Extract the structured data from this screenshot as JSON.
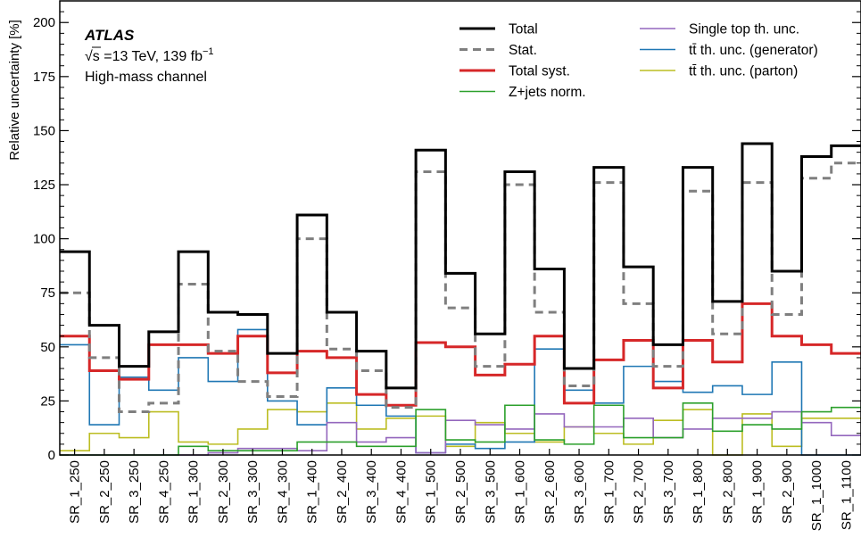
{
  "chart_data": {
    "type": "step",
    "ylabel": "Relative uncertainty [%]",
    "ylim": [
      0,
      210
    ],
    "yticks": [
      "0",
      "25",
      "50",
      "75",
      "100",
      "125",
      "150",
      "175",
      "200"
    ],
    "yticks_values": [
      0,
      25,
      50,
      75,
      100,
      125,
      150,
      175,
      200
    ],
    "categories": [
      "SR_1_250",
      "SR_2_250",
      "SR_3_250",
      "SR_4_250",
      "SR_1_300",
      "SR_2_300",
      "SR_3_300",
      "SR_4_300",
      "SR_1_400",
      "SR_2_400",
      "SR_3_400",
      "SR_4_400",
      "SR_1_500",
      "SR_2_500",
      "SR_3_500",
      "SR_1_600",
      "SR_2_600",
      "SR_3_600",
      "SR_1_700",
      "SR_2_700",
      "SR_3_700",
      "SR_1_800",
      "SR_2_800",
      "SR_1_900",
      "SR_2_900",
      "SR_1_1000",
      "SR_1_1100"
    ],
    "annotation": {
      "experiment": "ATLAS",
      "energy_prefix": "√s",
      "energy_text": " =13 TeV, 139 fb",
      "energy_sup": "−1",
      "channel": "High-mass channel"
    },
    "series": [
      {
        "name": "Total",
        "color": "#000000",
        "width": 3,
        "dash": "",
        "values": [
          94,
          60,
          41,
          57,
          94,
          66,
          65,
          47,
          111,
          66,
          48,
          31,
          141,
          84,
          56,
          131,
          86,
          40,
          133,
          87,
          51,
          133,
          71,
          144,
          85,
          138,
          143
        ]
      },
      {
        "name": "Stat.",
        "color": "#7f7f7f",
        "width": 3,
        "dash": "9,6",
        "values": [
          75,
          45,
          20,
          24,
          79,
          48,
          34,
          27,
          100,
          49,
          39,
          22,
          131,
          68,
          41,
          125,
          66,
          32,
          126,
          70,
          41,
          122,
          56,
          126,
          65,
          128,
          135
        ]
      },
      {
        "name": "Total syst.",
        "color": "#d62728",
        "width": 3,
        "dash": "",
        "values": [
          55,
          39,
          35,
          51,
          51,
          47,
          55,
          38,
          48,
          45,
          28,
          23,
          52,
          50,
          37,
          42,
          55,
          24,
          44,
          53,
          31,
          53,
          43,
          70,
          55,
          51,
          47
        ]
      },
      {
        "name": "Z+jets norm.",
        "color": "#2ca02c",
        "width": 1.6,
        "dash": "",
        "values": [
          0,
          0,
          0,
          0,
          4,
          2,
          2,
          2,
          6,
          6,
          4,
          4,
          21,
          7,
          6,
          23,
          7,
          5,
          23,
          8,
          8,
          24,
          11,
          14,
          12,
          20,
          22
        ]
      },
      {
        "name": "Single top th. unc.",
        "color": "#9467bd",
        "width": 1.6,
        "dash": "",
        "values": [
          0,
          0,
          0,
          0,
          0,
          1,
          3,
          3,
          2,
          15,
          6,
          8,
          1,
          16,
          14,
          12,
          19,
          13,
          13,
          17,
          8,
          12,
          17,
          17,
          20,
          15,
          9
        ]
      },
      {
        "name": "tt̄ th. unc. (generator)",
        "color": "#1f77b4",
        "width": 1.6,
        "dash": "",
        "values": [
          51,
          14,
          36,
          30,
          45,
          34,
          58,
          25,
          14,
          31,
          23,
          18,
          1,
          5,
          3,
          6,
          49,
          30,
          24,
          41,
          34,
          29,
          32,
          28,
          43,
          0,
          0
        ]
      },
      {
        "name": "tt̄ th. unc. (parton)",
        "color": "#bcbd22",
        "width": 1.6,
        "dash": "",
        "values": [
          2,
          10,
          8,
          20,
          6,
          5,
          12,
          21,
          20,
          24,
          12,
          17,
          18,
          4,
          15,
          10,
          6,
          13,
          10,
          5,
          16,
          21,
          0,
          19,
          4,
          17,
          17
        ]
      }
    ],
    "legend_col1": [
      {
        "label": "Total",
        "color": "#000000",
        "width": 3,
        "dash": ""
      },
      {
        "label": "Stat.",
        "color": "#7f7f7f",
        "width": 3,
        "dash": "9,6"
      },
      {
        "label": "Total syst.",
        "color": "#d62728",
        "width": 3,
        "dash": ""
      },
      {
        "label": "Z+jets norm.",
        "color": "#2ca02c",
        "width": 1.6,
        "dash": ""
      }
    ],
    "legend_col2": [
      {
        "label": "Single top th. unc.",
        "color": "#9467bd",
        "width": 1.6,
        "dash": ""
      },
      {
        "label": "tt̄ th. unc. (generator)",
        "color": "#1f77b4",
        "width": 1.6,
        "dash": ""
      },
      {
        "label": "tt̄ th. unc. (parton)",
        "color": "#bcbd22",
        "width": 1.6,
        "dash": ""
      }
    ],
    "grid": false
  }
}
